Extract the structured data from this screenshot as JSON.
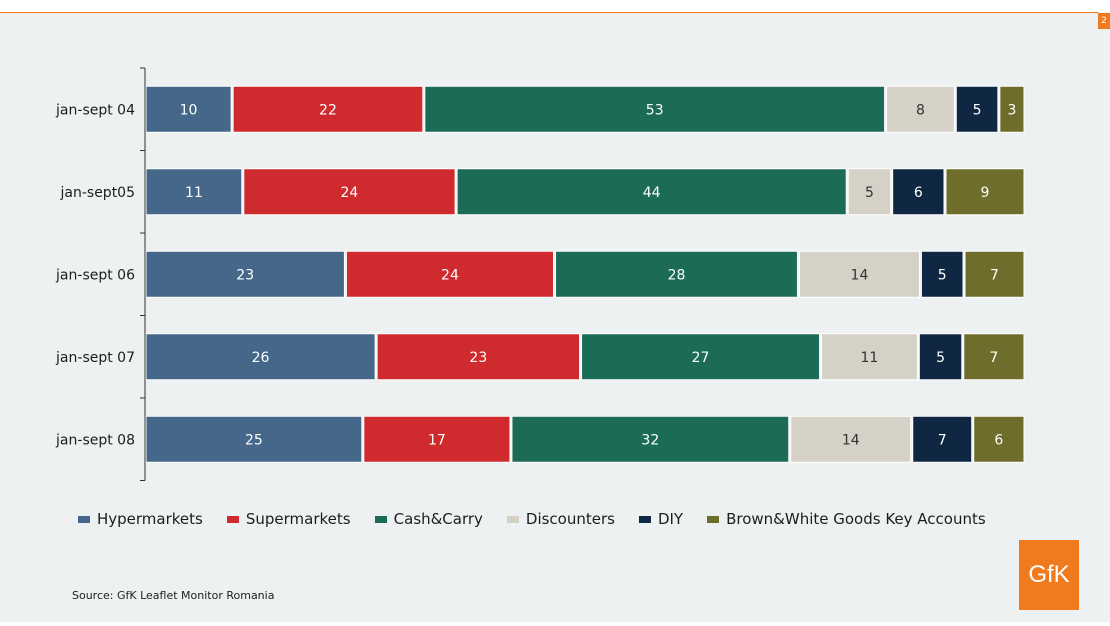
{
  "page": {
    "page_number": "2",
    "source": "Source: GfK Leaflet Monitor Romania",
    "logo_text": "GfK"
  },
  "colors": {
    "Hypermarkets": "#456789",
    "Supermarkets": "#cf2a2e",
    "Cash&Carry": "#1c6b57",
    "Discounters": "#d5d1c7",
    "DIY": "#0f2743",
    "Brown&White Goods Key Accounts": "#6e6d2c",
    "accent": "#f07b1e",
    "background": "#eef1f2"
  },
  "chart_data": {
    "type": "bar",
    "orientation": "horizontal",
    "stacked": true,
    "categories": [
      "jan-sept 04",
      "jan-sept05",
      "jan-sept 06",
      "jan-sept 07",
      "jan-sept 08"
    ],
    "series": [
      {
        "name": "Hypermarkets",
        "values": [
          10,
          11,
          23,
          26,
          25
        ]
      },
      {
        "name": "Supermarkets",
        "values": [
          22,
          24,
          24,
          23,
          17
        ]
      },
      {
        "name": "Cash&Carry",
        "values": [
          53,
          44,
          28,
          27,
          32
        ]
      },
      {
        "name": "Discounters",
        "values": [
          8,
          5,
          14,
          11,
          14
        ]
      },
      {
        "name": "DIY",
        "values": [
          5,
          6,
          5,
          5,
          7
        ]
      },
      {
        "name": "Brown&White Goods Key Accounts",
        "values": [
          3,
          9,
          7,
          7,
          6
        ]
      }
    ],
    "legend": "bottom",
    "grid": false
  }
}
